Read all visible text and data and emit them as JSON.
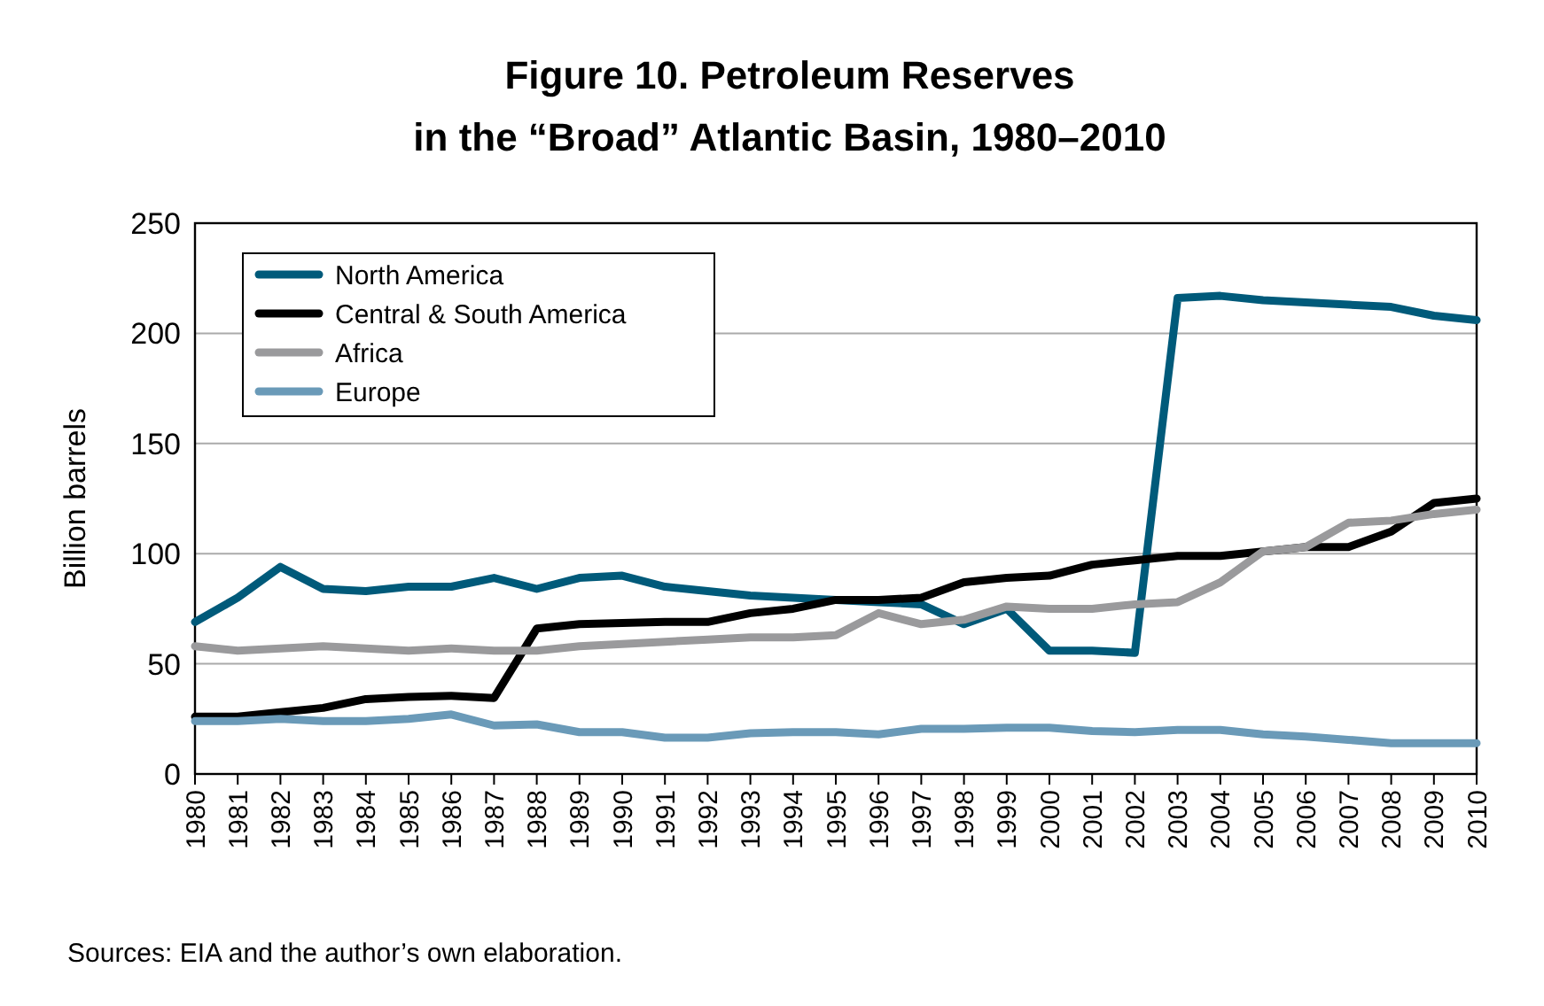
{
  "chart_data": {
    "type": "line",
    "title": "Figure 10. Petroleum Reserves\nin the “Broad” Atlantic Basin, 1980–2010",
    "ylabel": "Billion barrels",
    "annotations": [
      "Sources: EIA and the author’s own elaboration."
    ],
    "categories": [
      "1980",
      "1981",
      "1982",
      "1983",
      "1984",
      "1985",
      "1986",
      "1987",
      "1988",
      "1989",
      "1990",
      "1991",
      "1992",
      "1993",
      "1994",
      "1995",
      "1996",
      "1997",
      "1998",
      "1999",
      "2000",
      "2001",
      "2002",
      "2003",
      "2004",
      "2005",
      "2006",
      "2007",
      "2008",
      "2009",
      "2010"
    ],
    "series": [
      {
        "name": "North America",
        "color": "#005a7a",
        "values": [
          69,
          80,
          94,
          84,
          83,
          85,
          85,
          89,
          84,
          89,
          90,
          85,
          83,
          81,
          80,
          79,
          78,
          77,
          68,
          75,
          56,
          56,
          55,
          216,
          217,
          215,
          214,
          213,
          212,
          208,
          206
        ]
      },
      {
        "name": "Central & South America",
        "color": "#000000",
        "values": [
          26,
          26,
          28,
          30,
          34,
          35,
          35.5,
          34.5,
          66,
          68,
          68.5,
          69,
          69,
          73,
          75,
          79,
          79,
          80,
          87,
          89,
          90,
          95,
          97,
          99,
          99,
          101,
          103,
          103,
          110,
          123,
          125
        ]
      },
      {
        "name": "Africa",
        "color": "#9a9a9c",
        "values": [
          58,
          56,
          57,
          58,
          57,
          56,
          57,
          56,
          56,
          58,
          59,
          60,
          61,
          62,
          62,
          63,
          73,
          68,
          70,
          76,
          75,
          75,
          77,
          78,
          87,
          101,
          103,
          114,
          115,
          118,
          120
        ]
      },
      {
        "name": "Europe",
        "color": "#6a9ab8",
        "values": [
          24,
          24,
          25,
          24,
          24,
          25,
          27,
          22,
          22.5,
          19,
          19,
          16.5,
          16.5,
          18.5,
          19,
          19,
          18,
          20.5,
          20.5,
          21,
          21,
          19.5,
          19,
          20,
          20,
          18,
          17,
          15.5,
          14,
          14,
          14
        ]
      }
    ],
    "ylim": [
      0,
      250
    ],
    "yticks": [
      0,
      50,
      100,
      150,
      200,
      250
    ],
    "grid": "y",
    "legend": "top left",
    "line_style": "solid",
    "marker": "none"
  }
}
